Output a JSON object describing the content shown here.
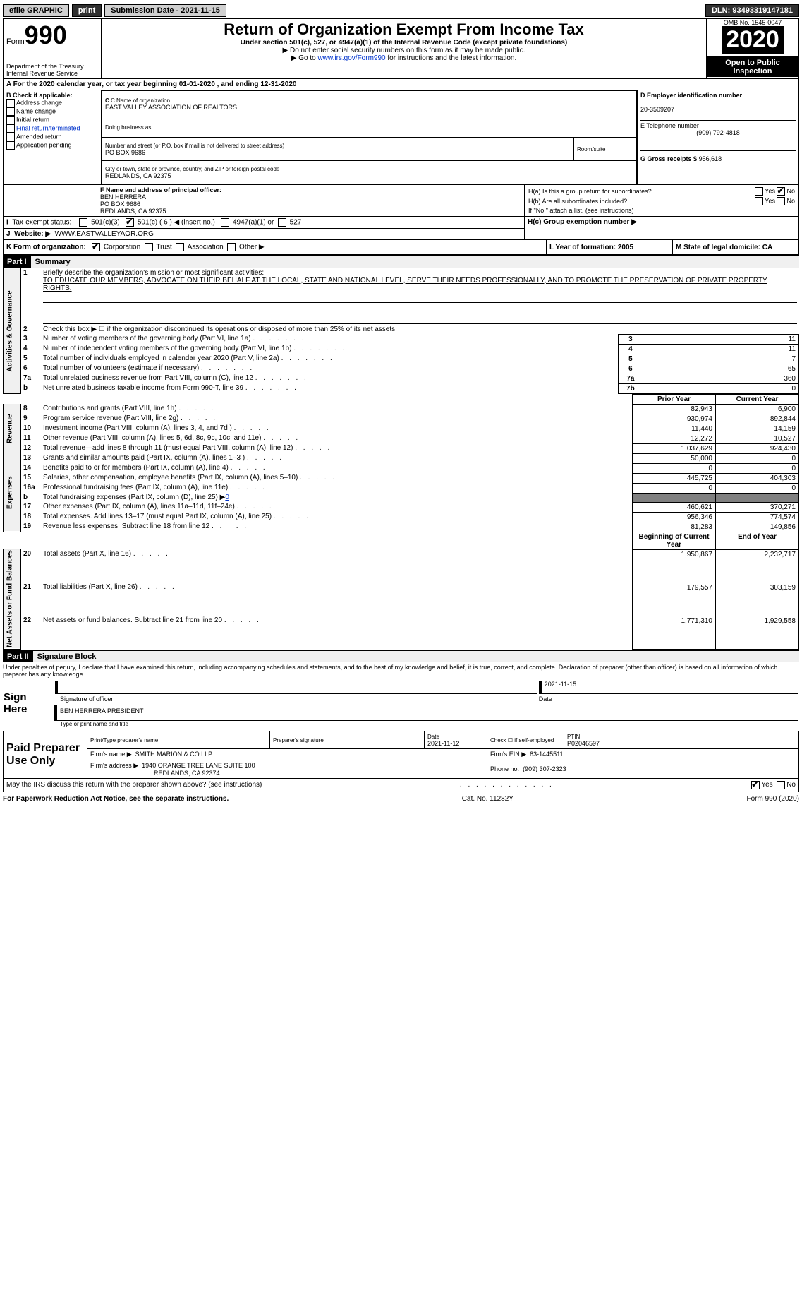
{
  "topbar": {
    "efile": "efile GRAPHIC",
    "print": "print",
    "sub_label": "Submission Date - 2021-11-15",
    "dln_label": "DLN: 93493319147181"
  },
  "header": {
    "form_word": "Form",
    "form_num": "990",
    "dept": "Department of the Treasury\nInternal Revenue Service",
    "title": "Return of Organization Exempt From Income Tax",
    "subtitle": "Under section 501(c), 527, or 4947(a)(1) of the Internal Revenue Code (except private foundations)",
    "note1": "▶ Do not enter social security numbers on this form as it may be made public.",
    "note2_pre": "▶ Go to ",
    "note2_link": "www.irs.gov/Form990",
    "note2_post": " for instructions and the latest information.",
    "omb": "OMB No. 1545-0047",
    "year": "2020",
    "open": "Open to Public Inspection"
  },
  "period": {
    "text": "A For the 2020 calendar year, or tax year beginning 01-01-2020    , and ending 12-31-2020"
  },
  "colB": {
    "label": "B Check if applicable:",
    "items": [
      "Address change",
      "Name change",
      "Initial return",
      "Final return/terminated",
      "Amended return",
      "Application pending"
    ]
  },
  "orgC": {
    "name_label": "C Name of organization",
    "name": "EAST VALLEY ASSOCIATION OF REALTORS",
    "dba_label": "Doing business as",
    "street_label": "Number and street (or P.O. box if mail is not delivered to street address)",
    "room_label": "Room/suite",
    "street": "PO BOX 9686",
    "city_label": "City or town, state or province, country, and ZIP or foreign postal code",
    "city": "REDLANDS, CA  92375"
  },
  "colD": {
    "label": "D Employer identification number",
    "val": "20-3509207"
  },
  "colE": {
    "label": "E Telephone number",
    "val": "(909) 792-4818"
  },
  "colG": {
    "label": "G Gross receipts $",
    "val": "956,618"
  },
  "colF": {
    "label": "F  Name and address of principal officer:",
    "name": "BEN HERRERA",
    "street": "PO BOX 9686",
    "city": "REDLANDS, CA  92375"
  },
  "colH": {
    "a_label": "H(a)  Is this a group return for subordinates?",
    "b_label": "H(b)  Are all subordinates included?",
    "b_note": "If \"No,\" attach a list. (see instructions)",
    "c_label": "H(c)  Group exemption number ▶",
    "yes": "Yes",
    "no": "No"
  },
  "rowI": {
    "label": "Tax-exempt status:",
    "c3": "501(c)(3)",
    "c": "501(c) ( 6 ) ◀ (insert no.)",
    "a1": "4947(a)(1) or",
    "s527": "527"
  },
  "rowJ": {
    "label": "Website: ▶",
    "val": "WWW.EASTVALLEYAOR.ORG"
  },
  "rowK": {
    "label": "K Form of organization:",
    "corp": "Corporation",
    "trust": "Trust",
    "assoc": "Association",
    "other": "Other ▶"
  },
  "rowL": {
    "label": "L Year of formation: 2005"
  },
  "rowM": {
    "label": "M State of legal domicile: CA"
  },
  "part1": {
    "header": "Part I",
    "title": "Summary"
  },
  "vlabels": {
    "act": "Activities & Governance",
    "rev": "Revenue",
    "exp": "Expenses",
    "net": "Net Assets or Fund Balances"
  },
  "mission_label": "Briefly describe the organization's mission or most significant activities:",
  "mission": "TO EDUCATE OUR MEMBERS, ADVOCATE ON THEIR BEHALF AT THE LOCAL, STATE AND NATIONAL LEVEL, SERVE THEIR NEEDS PROFESSIONALLY, AND TO PROMOTE THE PRESERVATION OF PRIVATE PROPERTY RIGHTS.",
  "line2": "Check this box ▶ ☐  if the organization discontinued its operations or disposed of more than 25% of its net assets.",
  "gov_rows": [
    {
      "n": "3",
      "t": "Number of voting members of the governing body (Part VI, line 1a)",
      "box": "3",
      "v": "11"
    },
    {
      "n": "4",
      "t": "Number of independent voting members of the governing body (Part VI, line 1b)",
      "box": "4",
      "v": "11"
    },
    {
      "n": "5",
      "t": "Total number of individuals employed in calendar year 2020 (Part V, line 2a)",
      "box": "5",
      "v": "7"
    },
    {
      "n": "6",
      "t": "Total number of volunteers (estimate if necessary)",
      "box": "6",
      "v": "65"
    },
    {
      "n": "7a",
      "t": "Total unrelated business revenue from Part VIII, column (C), line 12",
      "box": "7a",
      "v": "360"
    },
    {
      "n": "b",
      "t": "Net unrelated business taxable income from Form 990-T, line 39",
      "box": "7b",
      "v": "0"
    }
  ],
  "col_headers": {
    "prior": "Prior Year",
    "current": "Current Year",
    "beg": "Beginning of Current Year",
    "end": "End of Year"
  },
  "rev_rows": [
    {
      "n": "8",
      "t": "Contributions and grants (Part VIII, line 1h)",
      "p": "82,943",
      "c": "6,900"
    },
    {
      "n": "9",
      "t": "Program service revenue (Part VIII, line 2g)",
      "p": "930,974",
      "c": "892,844"
    },
    {
      "n": "10",
      "t": "Investment income (Part VIII, column (A), lines 3, 4, and 7d )",
      "p": "11,440",
      "c": "14,159"
    },
    {
      "n": "11",
      "t": "Other revenue (Part VIII, column (A), lines 5, 6d, 8c, 9c, 10c, and 11e)",
      "p": "12,272",
      "c": "10,527"
    },
    {
      "n": "12",
      "t": "Total revenue—add lines 8 through 11 (must equal Part VIII, column (A), line 12)",
      "p": "1,037,629",
      "c": "924,430"
    }
  ],
  "exp_rows": [
    {
      "n": "13",
      "t": "Grants and similar amounts paid (Part IX, column (A), lines 1–3 )",
      "p": "50,000",
      "c": "0"
    },
    {
      "n": "14",
      "t": "Benefits paid to or for members (Part IX, column (A), line 4)",
      "p": "0",
      "c": "0"
    },
    {
      "n": "15",
      "t": "Salaries, other compensation, employee benefits (Part IX, column (A), lines 5–10)",
      "p": "445,725",
      "c": "404,303"
    },
    {
      "n": "16a",
      "t": "Professional fundraising fees (Part IX, column (A), line 11e)",
      "p": "0",
      "c": "0"
    },
    {
      "n": "b",
      "t": "Total fundraising expenses (Part IX, column (D), line 25) ▶",
      "p": "",
      "c": "",
      "gray": true,
      "link": "0"
    },
    {
      "n": "17",
      "t": "Other expenses (Part IX, column (A), lines 11a–11d, 11f–24e)",
      "p": "460,621",
      "c": "370,271"
    },
    {
      "n": "18",
      "t": "Total expenses. Add lines 13–17 (must equal Part IX, column (A), line 25)",
      "p": "956,346",
      "c": "774,574"
    },
    {
      "n": "19",
      "t": "Revenue less expenses. Subtract line 18 from line 12",
      "p": "81,283",
      "c": "149,856"
    }
  ],
  "net_rows": [
    {
      "n": "20",
      "t": "Total assets (Part X, line 16)",
      "p": "1,950,867",
      "c": "2,232,717"
    },
    {
      "n": "21",
      "t": "Total liabilities (Part X, line 26)",
      "p": "179,557",
      "c": "303,159"
    },
    {
      "n": "22",
      "t": "Net assets or fund balances. Subtract line 21 from line 20",
      "p": "1,771,310",
      "c": "1,929,558"
    }
  ],
  "part2": {
    "header": "Part II",
    "title": "Signature Block"
  },
  "penalties": "Under penalties of perjury, I declare that I have examined this return, including accompanying schedules and statements, and to the best of my knowledge and belief, it is true, correct, and complete. Declaration of preparer (other than officer) is based on all information of which preparer has any knowledge.",
  "sign": {
    "here": "Sign Here",
    "date": "2021-11-15",
    "sig_label": "Signature of officer",
    "date_label": "Date",
    "name": "BEN HERRERA  PRESIDENT",
    "name_label": "Type or print name and title"
  },
  "preparer": {
    "title": "Paid Preparer Use Only",
    "h1": "Print/Type preparer's name",
    "h2": "Preparer's signature",
    "h3_label": "Date",
    "h3": "2021-11-12",
    "h4_label": "Check ☐ if self-employed",
    "h5_label": "PTIN",
    "h5": "P02046597",
    "firm_label": "Firm's name    ▶",
    "firm": "SMITH MARION & CO LLP",
    "ein_label": "Firm's EIN ▶",
    "ein": "83-1445511",
    "addr_label": "Firm's address ▶",
    "addr1": "1940 ORANGE TREE LANE SUITE 100",
    "addr2": "REDLANDS, CA  92374",
    "phone_label": "Phone no.",
    "phone": "(909) 307-2323"
  },
  "discuss": {
    "text": "May the IRS discuss this return with the preparer shown above? (see instructions)",
    "yes": "Yes",
    "no": "No"
  },
  "footer": {
    "left": "For Paperwork Reduction Act Notice, see the separate instructions.",
    "mid": "Cat. No. 11282Y",
    "right": "Form 990 (2020)"
  }
}
